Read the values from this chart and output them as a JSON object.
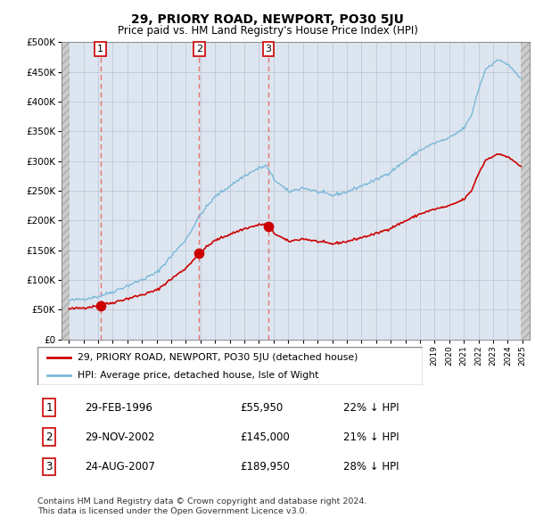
{
  "title": "29, PRIORY ROAD, NEWPORT, PO30 5JU",
  "subtitle": "Price paid vs. HM Land Registry's House Price Index (HPI)",
  "ylim": [
    0,
    500000
  ],
  "yticks": [
    0,
    50000,
    100000,
    150000,
    200000,
    250000,
    300000,
    350000,
    400000,
    450000,
    500000
  ],
  "ytick_labels": [
    "£0",
    "£50K",
    "£100K",
    "£150K",
    "£200K",
    "£250K",
    "£300K",
    "£350K",
    "£400K",
    "£450K",
    "£500K"
  ],
  "sale_year_floats": [
    1996.1667,
    2002.9167,
    2007.6389
  ],
  "sale_prices": [
    55950,
    145000,
    189950
  ],
  "sale_labels": [
    "1",
    "2",
    "3"
  ],
  "sale_info": [
    {
      "label": "1",
      "date": "29-FEB-1996",
      "price": "£55,950",
      "hpi": "22% ↓ HPI"
    },
    {
      "label": "2",
      "date": "29-NOV-2002",
      "price": "£145,000",
      "hpi": "21% ↓ HPI"
    },
    {
      "label": "3",
      "date": "24-AUG-2007",
      "price": "£189,950",
      "hpi": "28% ↓ HPI"
    }
  ],
  "legend_line1": "29, PRIORY ROAD, NEWPORT, PO30 5JU (detached house)",
  "legend_line2": "HPI: Average price, detached house, Isle of Wight",
  "footnote": "Contains HM Land Registry data © Crown copyright and database right 2024.\nThis data is licensed under the Open Government Licence v3.0.",
  "hpi_color": "#7ab8d9",
  "sale_line_color": "#cc0000",
  "dashed_line_color": "#e87070",
  "grid_color": "#c0c8d8",
  "plot_bg": "#dde6f0",
  "hpi_anchors_x": [
    1994.0,
    1995.0,
    1996.0,
    1997.0,
    1998.0,
    1999.0,
    2000.0,
    2001.0,
    2002.0,
    2003.0,
    2004.0,
    2005.0,
    2006.0,
    2007.0,
    2007.5,
    2008.0,
    2009.0,
    2010.0,
    2011.0,
    2012.0,
    2013.0,
    2014.0,
    2015.0,
    2016.0,
    2017.0,
    2018.0,
    2019.0,
    2020.0,
    2021.0,
    2021.5,
    2022.0,
    2022.5,
    2023.0,
    2023.5,
    2024.0,
    2024.5,
    2024.9
  ],
  "hpi_anchors_y": [
    65000,
    68000,
    72000,
    80000,
    90000,
    100000,
    112000,
    140000,
    168000,
    210000,
    240000,
    258000,
    275000,
    288000,
    292000,
    270000,
    248000,
    255000,
    248000,
    242000,
    248000,
    258000,
    268000,
    282000,
    300000,
    318000,
    330000,
    338000,
    355000,
    375000,
    420000,
    455000,
    465000,
    470000,
    462000,
    450000,
    438000
  ]
}
